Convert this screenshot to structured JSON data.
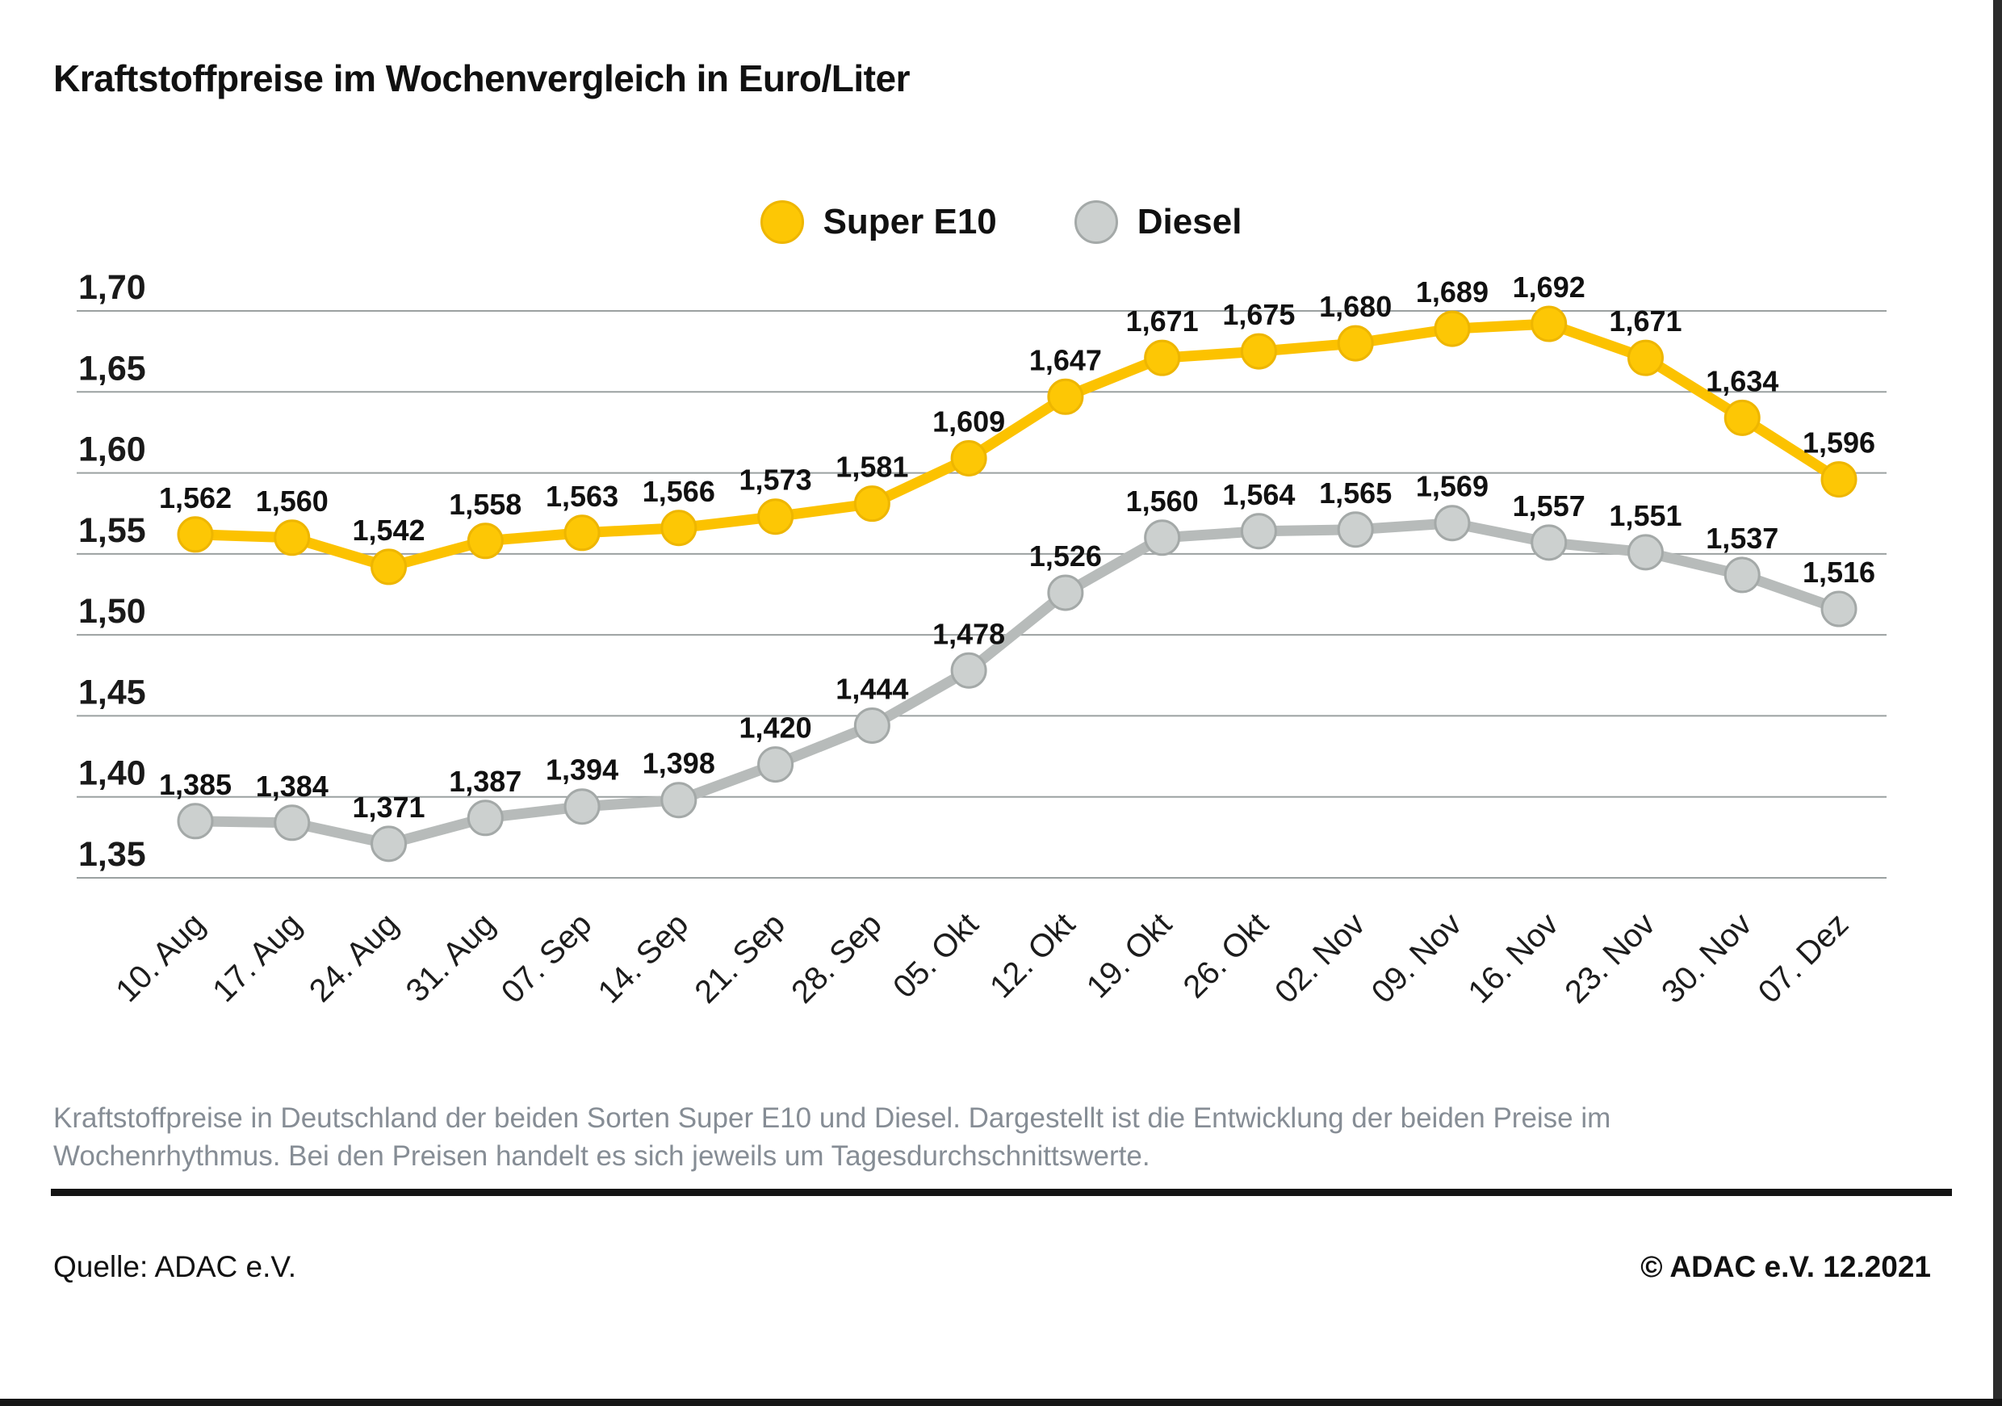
{
  "title": "Kraftstoffpreise im Wochenvergleich in Euro/Liter",
  "chart_data": {
    "type": "line",
    "title": "Kraftstoffpreise im Wochenvergleich in Euro/Liter",
    "xlabel": "",
    "ylabel": "Euro/Liter",
    "grid": true,
    "legend_position": "top",
    "ylim": [
      1.35,
      1.7
    ],
    "yticks": [
      "1,70",
      "1,65",
      "1,60",
      "1,55",
      "1,50",
      "1,45",
      "1,40",
      "1,35"
    ],
    "categories": [
      "10. Aug",
      "17. Aug",
      "24. Aug",
      "31. Aug",
      "07. Sep",
      "14. Sep",
      "21. Sep",
      "28. Sep",
      "05. Okt",
      "12. Okt",
      "19. Okt",
      "26. Okt",
      "02. Nov",
      "09. Nov",
      "16. Nov",
      "23. Nov",
      "30. Nov",
      "07. Dez"
    ],
    "series": [
      {
        "name": "Super E10",
        "color": "#fcc200",
        "dot_fill": "#fdc705",
        "dot_stroke": "#eeb600",
        "values": [
          1.562,
          1.56,
          1.542,
          1.558,
          1.563,
          1.566,
          1.573,
          1.581,
          1.609,
          1.647,
          1.671,
          1.675,
          1.68,
          1.689,
          1.692,
          1.671,
          1.634,
          1.596
        ]
      },
      {
        "name": "Diesel",
        "color": "#b7bbba",
        "dot_fill": "#ccd0cf",
        "dot_stroke": "#a4a9a8",
        "values": [
          1.385,
          1.384,
          1.371,
          1.387,
          1.394,
          1.398,
          1.42,
          1.444,
          1.478,
          1.526,
          1.56,
          1.564,
          1.565,
          1.569,
          1.557,
          1.551,
          1.537,
          1.516
        ]
      }
    ],
    "colors": {
      "grid": "#9ba1a1"
    }
  },
  "caption": {
    "lines": [
      "Kraftstoffpreise in Deutschland der beiden Sorten Super E10 und Diesel. Dargestellt ist die Entwicklung der beiden Preise im",
      "Wochenrhythmus. Bei den Preisen handelt es sich jeweils um Tagesdurchschnittswerte."
    ]
  },
  "footer": {
    "source": "Quelle: ADAC e.V.",
    "copyright": "© ADAC e.V. 12.2021"
  }
}
